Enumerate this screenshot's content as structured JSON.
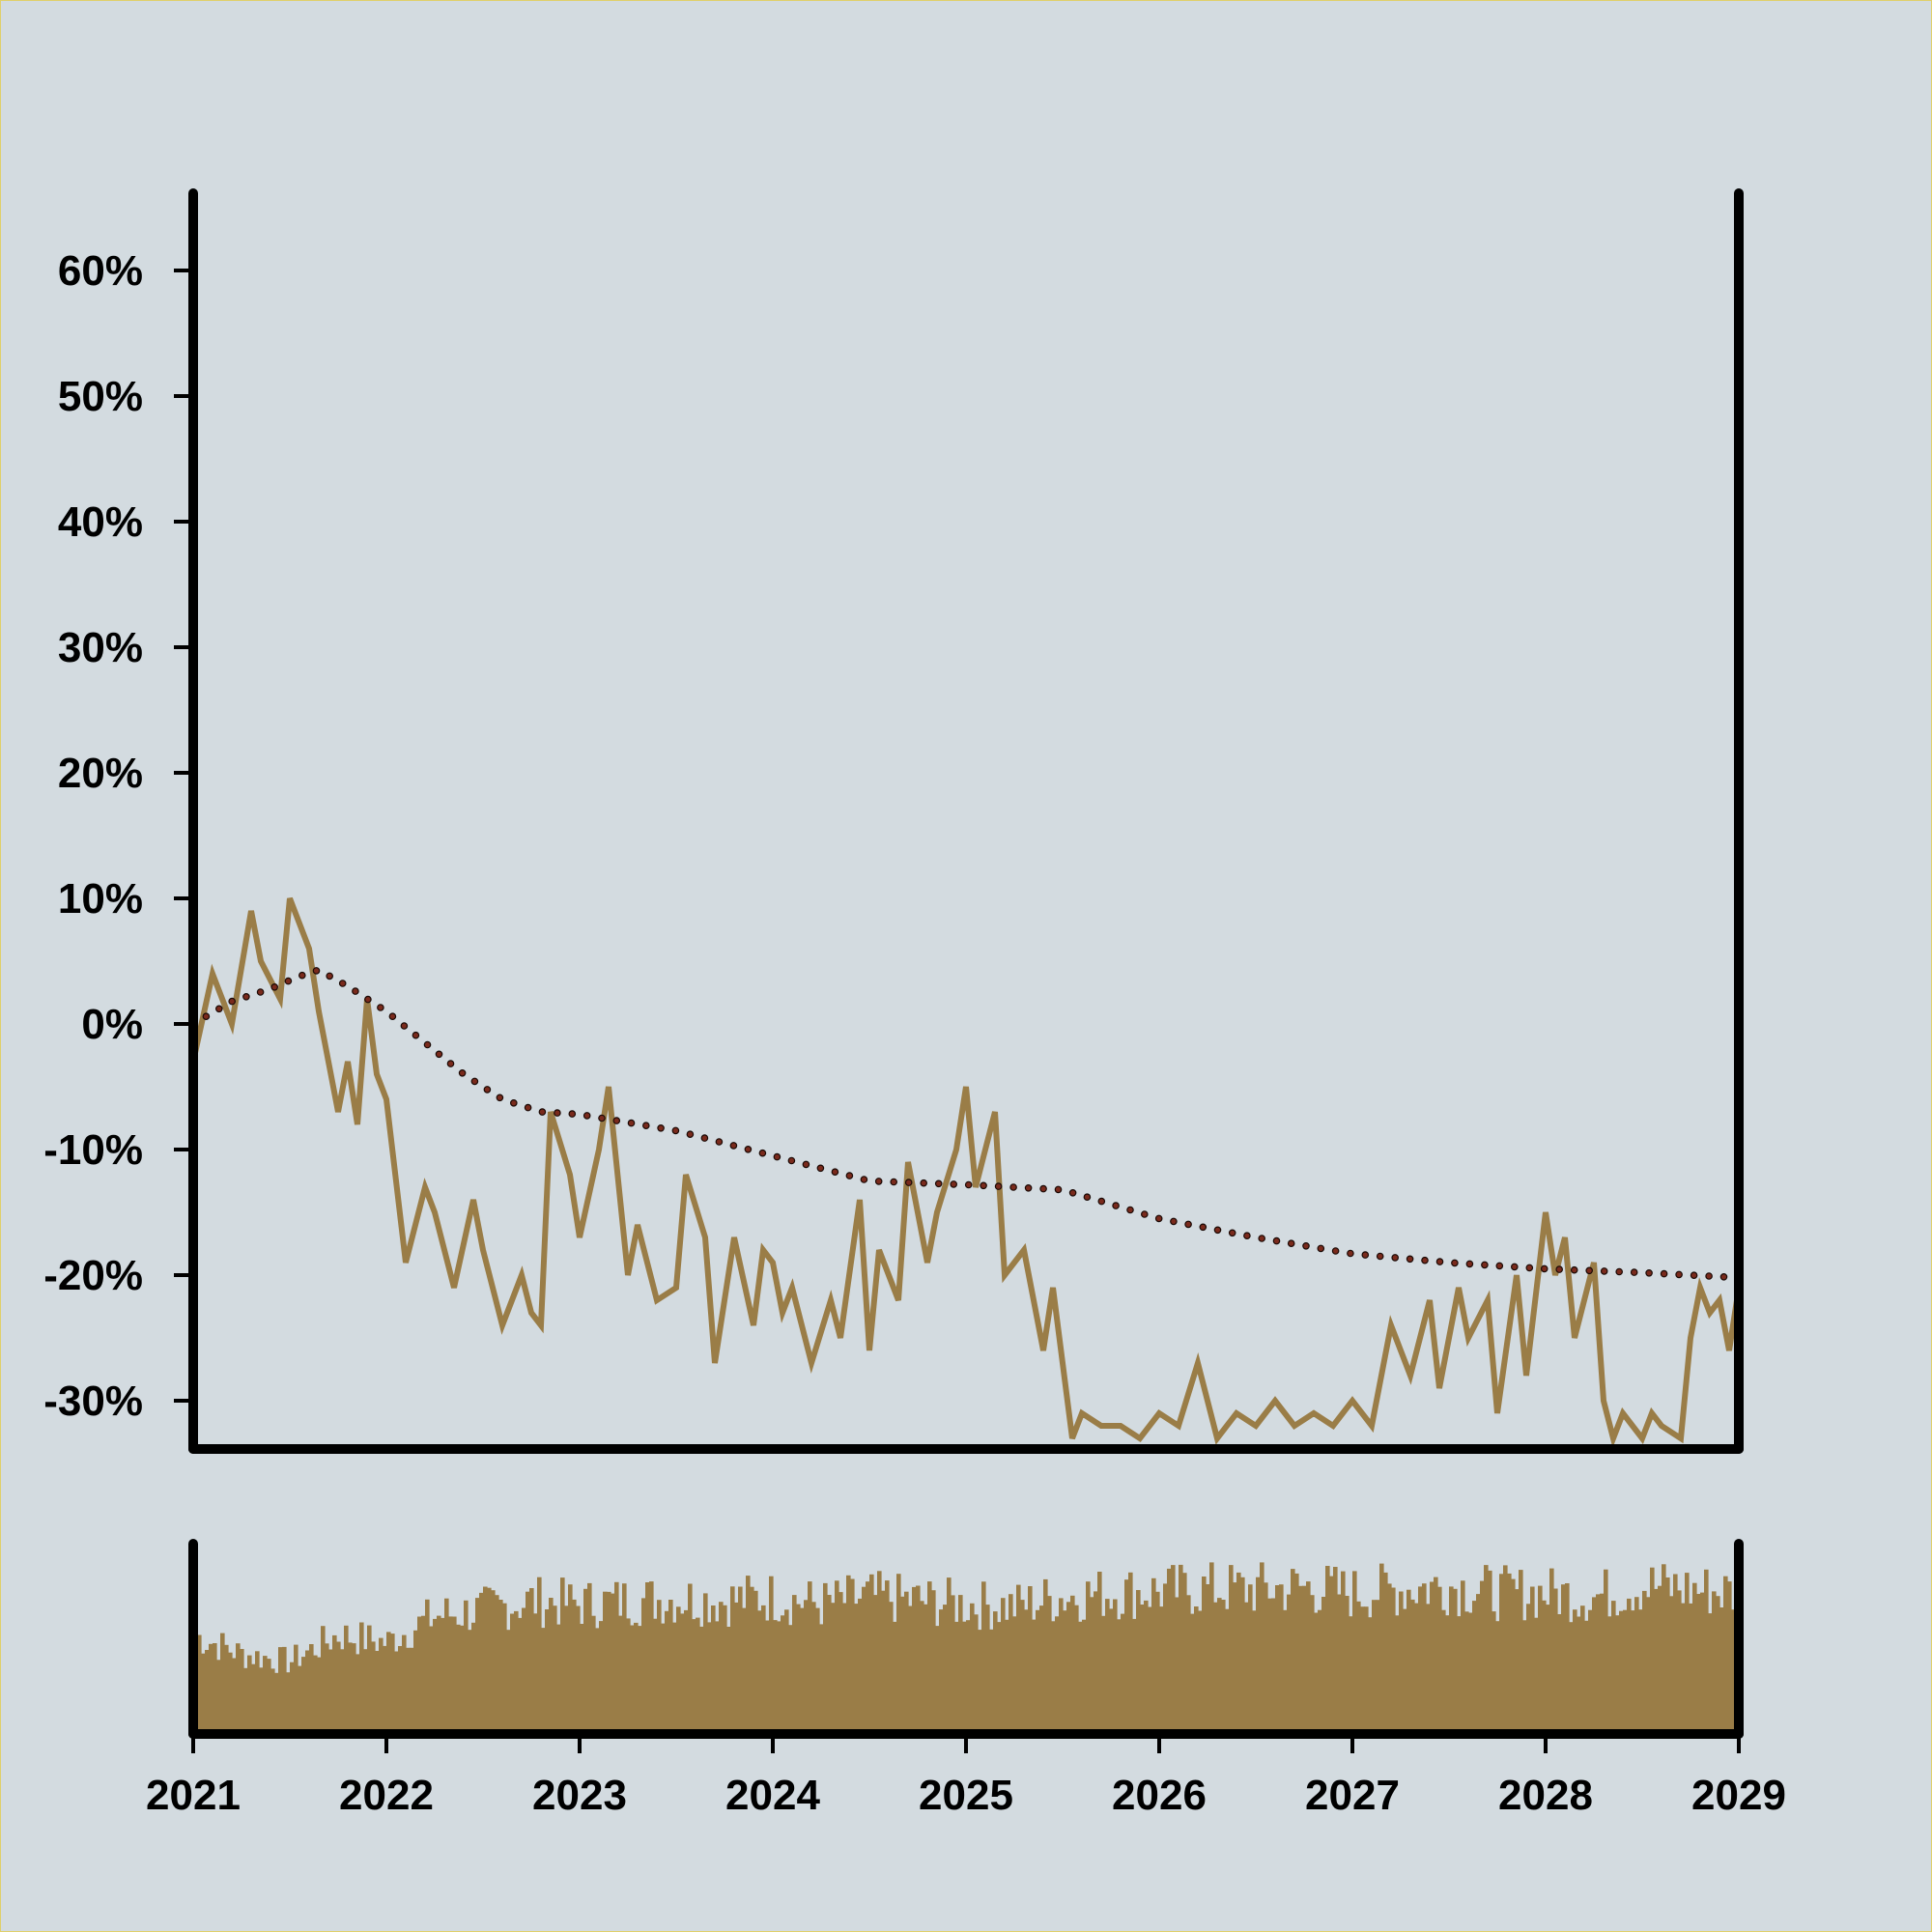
{
  "colors": {
    "background": "#d3dbe0",
    "frame_border": "#e0cf6a",
    "price_line": "#9a7d47",
    "volume_bars": "#9a7d47",
    "trend_dots": "#7a2a1c",
    "axes": "#000000"
  },
  "chart_data": [
    {
      "type": "line",
      "title": "",
      "xlabel": "",
      "ylabel": "",
      "ylim": [
        -34,
        67
      ],
      "xlim": [
        2021.0,
        2029.0
      ],
      "grid": false,
      "y_ticks": [
        60,
        50,
        40,
        30,
        20,
        10,
        0,
        -10,
        -20,
        -30
      ],
      "y_tick_labels": [
        "60%",
        "50%",
        "40%",
        "30%",
        "20%",
        "10%",
        "0%",
        "-10%",
        "-20%",
        "-30%"
      ],
      "series": [
        {
          "style": "solid",
          "x": [
            2021.0,
            2021.1,
            2021.2,
            2021.3,
            2021.35,
            2021.45,
            2021.5,
            2021.6,
            2021.65,
            2021.75,
            2021.8,
            2021.85,
            2021.9,
            2021.95,
            2022.0,
            2022.1,
            2022.2,
            2022.25,
            2022.35,
            2022.45,
            2022.5,
            2022.6,
            2022.7,
            2022.75,
            2022.8,
            2022.85,
            2022.95,
            2023.0,
            2023.1,
            2023.15,
            2023.25,
            2023.3,
            2023.4,
            2023.5,
            2023.55,
            2023.65,
            2023.7,
            2023.8,
            2023.9,
            2023.95,
            2024.0,
            2024.05,
            2024.1,
            2024.2,
            2024.3,
            2024.35,
            2024.45,
            2024.5,
            2024.55,
            2024.65,
            2024.7,
            2024.8,
            2024.85,
            2024.95,
            2025.0,
            2025.05,
            2025.15,
            2025.2,
            2025.3,
            2025.4,
            2025.45,
            2025.55,
            2025.6,
            2025.7,
            2025.8,
            2025.9,
            2026.0,
            2026.1,
            2026.2,
            2026.3,
            2026.4,
            2026.5,
            2026.6,
            2026.7,
            2026.8,
            2026.9,
            2027.0,
            2027.1,
            2027.2,
            2027.3,
            2027.4,
            2027.45,
            2027.55,
            2027.6,
            2027.7,
            2027.75,
            2027.85,
            2027.9,
            2028.0,
            2028.05,
            2028.1,
            2028.15,
            2028.25,
            2028.3,
            2028.35,
            2028.4,
            2028.5,
            2028.55,
            2028.6,
            2028.7,
            2028.75,
            2028.8,
            2028.85,
            2028.9,
            2028.95,
            2029.0
          ],
          "values": [
            -3,
            4,
            0,
            9,
            5,
            2,
            10,
            6,
            1,
            -7,
            -3,
            -8,
            2,
            -4,
            -6,
            -19,
            -13,
            -15,
            -21,
            -14,
            -18,
            -24,
            -20,
            -23,
            -24,
            -7,
            -12,
            -17,
            -10,
            -5,
            -20,
            -16,
            -22,
            -21,
            -12,
            -17,
            -27,
            -17,
            -24,
            -18,
            -19,
            -23,
            -21,
            -27,
            -22,
            -25,
            -14,
            -26,
            -18,
            -22,
            -11,
            -19,
            -15,
            -10,
            -5,
            -13,
            -7,
            -20,
            -18,
            -26,
            -21,
            -33,
            -31,
            -32,
            -32,
            -33,
            -31,
            -32,
            -27,
            -33,
            -31,
            -32,
            -30,
            -32,
            -31,
            -32,
            -30,
            -32,
            -24,
            -28,
            -22,
            -29,
            -21,
            -25,
            -22,
            -31,
            -20,
            -28,
            -15,
            -20,
            -17,
            -25,
            -19,
            -30,
            -33,
            -31,
            -33,
            -31,
            -32,
            -33,
            -25,
            -21,
            -23,
            -22,
            -26,
            -21
          ]
        },
        {
          "style": "dotted",
          "x": [
            2021.0,
            2021.2,
            2021.4,
            2021.55,
            2021.65,
            2021.8,
            2022.0,
            2022.2,
            2022.4,
            2022.6,
            2022.8,
            2023.0,
            2023.5,
            2024.0,
            2024.5,
            2025.0,
            2025.5,
            2026.0,
            2026.5,
            2027.0,
            2027.5,
            2028.0,
            2028.5,
            2029.0
          ],
          "values": [
            0,
            1.8,
            2.8,
            3.8,
            4.3,
            3.0,
            1.0,
            -1.5,
            -4.0,
            -6.0,
            -7.0,
            -7.2,
            -8.5,
            -10.5,
            -12.5,
            -12.8,
            -13.2,
            -15.5,
            -17.0,
            -18.3,
            -19.0,
            -19.5,
            -19.8,
            -20.2
          ]
        }
      ]
    },
    {
      "type": "bar",
      "title": "",
      "xlabel": "",
      "ylabel": "",
      "xlim": [
        2021.0,
        2029.0
      ],
      "ylim": [
        0,
        1
      ],
      "grid": false,
      "x_ticks": [
        2021,
        2022,
        2023,
        2024,
        2025,
        2026,
        2027,
        2028,
        2029
      ],
      "x_tick_labels": [
        "2021",
        "2022",
        "2023",
        "2024",
        "2025",
        "2026",
        "2027",
        "2028",
        "2029"
      ],
      "series": [
        {
          "x": [
            2021.0,
            2021.25,
            2021.5,
            2021.75,
            2022.0,
            2022.25,
            2022.5,
            2022.75,
            2023.0,
            2023.25,
            2023.5,
            2023.75,
            2024.0,
            2024.25,
            2024.5,
            2024.75,
            2025.0,
            2025.25,
            2025.5,
            2025.75,
            2026.0,
            2026.25,
            2026.5,
            2026.75,
            2027.0,
            2027.25,
            2027.5,
            2027.75,
            2028.0,
            2028.25,
            2028.5,
            2028.75,
            2029.0
          ],
          "values": [
            0.52,
            0.42,
            0.38,
            0.52,
            0.48,
            0.62,
            0.65,
            0.7,
            0.68,
            0.7,
            0.71,
            0.7,
            0.72,
            0.68,
            0.72,
            0.7,
            0.68,
            0.67,
            0.72,
            0.74,
            0.75,
            0.76,
            0.76,
            0.77,
            0.74,
            0.76,
            0.78,
            0.74,
            0.74,
            0.72,
            0.78,
            0.76,
            0.74
          ]
        }
      ]
    }
  ]
}
